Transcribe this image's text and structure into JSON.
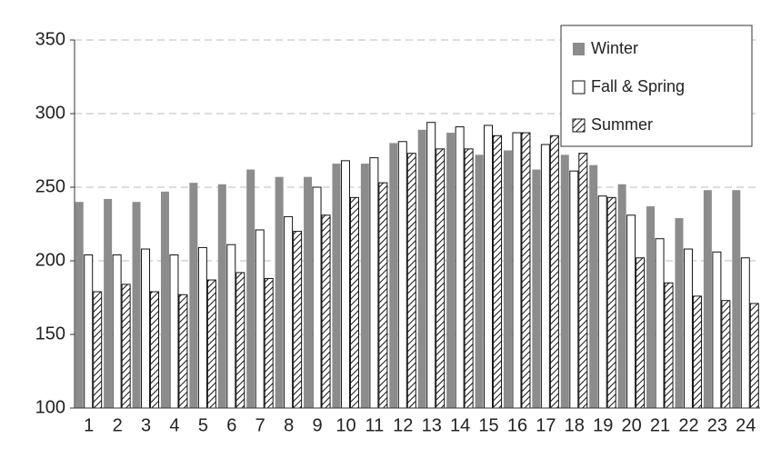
{
  "chart_data": {
    "type": "bar",
    "categories": [
      "1",
      "2",
      "3",
      "4",
      "5",
      "6",
      "7",
      "8",
      "9",
      "10",
      "11",
      "12",
      "13",
      "14",
      "15",
      "16",
      "17",
      "18",
      "19",
      "20",
      "21",
      "22",
      "23",
      "24"
    ],
    "series": [
      {
        "name": "Winter",
        "color": "#8c8c8c",
        "values": [
          240,
          242,
          240,
          247,
          253,
          252,
          262,
          257,
          257,
          266,
          266,
          280,
          289,
          287,
          272,
          275,
          262,
          272,
          265,
          252,
          237,
          229,
          248,
          248
        ]
      },
      {
        "name": "Fall & Spring",
        "color": "#ffffff",
        "values": [
          204,
          204,
          208,
          204,
          209,
          211,
          221,
          230,
          250,
          268,
          270,
          281,
          294,
          291,
          292,
          287,
          279,
          261,
          244,
          231,
          215,
          208,
          206,
          202
        ]
      },
      {
        "name": "Summer",
        "color": "#ffffff",
        "hatch": true,
        "values": [
          179,
          184,
          179,
          177,
          187,
          192,
          188,
          220,
          231,
          243,
          253,
          273,
          276,
          276,
          285,
          287,
          285,
          273,
          243,
          202,
          185,
          176,
          173,
          171
        ]
      }
    ],
    "ylim": [
      100,
      350
    ],
    "yticks": [
      100,
      150,
      200,
      250,
      300,
      350
    ],
    "grid": true,
    "legend": "top-right"
  }
}
